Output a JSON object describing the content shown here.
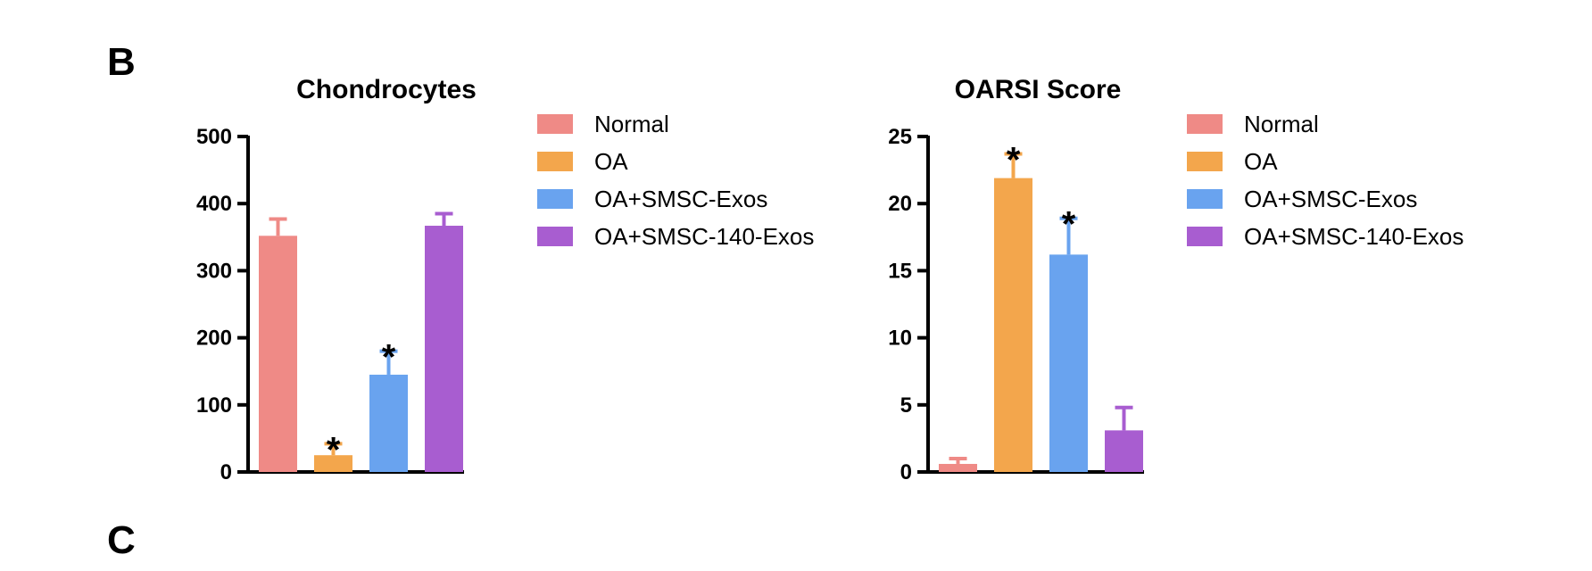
{
  "panels": {
    "b_label": "B",
    "c_label": "C"
  },
  "legend": {
    "entries": [
      {
        "name": "Normal",
        "color": "#ef8a86"
      },
      {
        "name": "OA",
        "color": "#f3a64c"
      },
      {
        "name": "OA+SMSC-Exos",
        "color": "#69a3ef"
      },
      {
        "name": "OA+SMSC-140-Exos",
        "color": "#a85dd0"
      }
    ]
  },
  "chart_data": [
    {
      "type": "bar",
      "title": "Chondrocytes",
      "xlabel": "",
      "ylabel": "",
      "ylim": [
        0,
        500
      ],
      "yticks": [
        0,
        100,
        200,
        300,
        400,
        500
      ],
      "categories": [
        "Normal",
        "OA",
        "OA+SMSC-Exos",
        "OA+SMSC-140-Exos"
      ],
      "values": [
        352,
        25,
        145,
        367
      ],
      "errors": [
        25,
        17,
        35,
        18
      ],
      "significance": [
        "",
        "*",
        "*",
        ""
      ],
      "colors": [
        "#ef8a86",
        "#f3a64c",
        "#69a3ef",
        "#a85dd0"
      ],
      "legend_position": "right",
      "grid": false
    },
    {
      "type": "bar",
      "title": "OARSI Score",
      "xlabel": "",
      "ylabel": "",
      "ylim": [
        0,
        25
      ],
      "yticks": [
        0,
        5,
        10,
        15,
        20,
        25
      ],
      "categories": [
        "Normal",
        "OA",
        "OA+SMSC-Exos",
        "OA+SMSC-140-Exos"
      ],
      "values": [
        0.6,
        21.9,
        16.2,
        3.1
      ],
      "errors": [
        0.4,
        1.8,
        2.7,
        1.7
      ],
      "significance": [
        "",
        "*",
        "*",
        ""
      ],
      "colors": [
        "#ef8a86",
        "#f3a64c",
        "#69a3ef",
        "#a85dd0"
      ],
      "legend_position": "right",
      "grid": false
    }
  ]
}
